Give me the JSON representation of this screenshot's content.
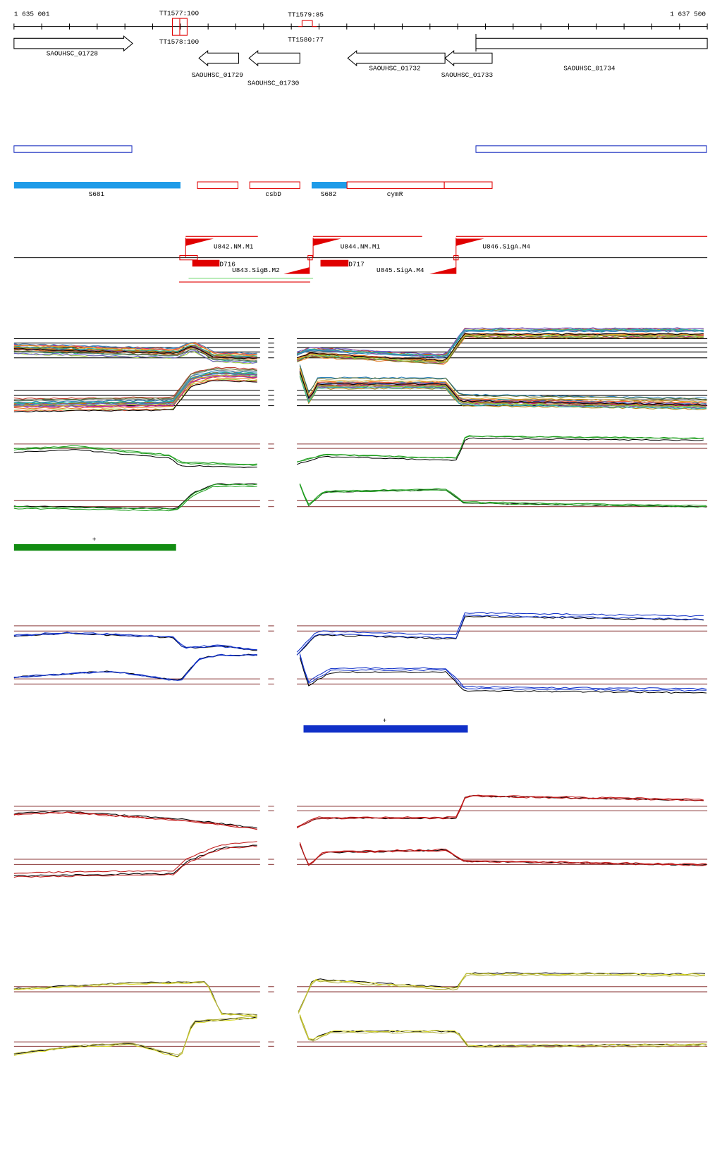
{
  "ruler": {
    "start": "1 635 001",
    "end": "1 637 500"
  },
  "terminators": [
    "TT1577:100",
    "TT1578:100",
    "TT1579:85",
    "TT1580:77"
  ],
  "genes": [
    "SAOUHSC_01728",
    "SAOUHSC_01729",
    "SAOUHSC_01730",
    "SAOUHSC_01732",
    "SAOUHSC_01733",
    "SAOUHSC_01734"
  ],
  "segments": [
    "S681",
    "csbD",
    "S682",
    "cymR"
  ],
  "promoters": [
    "U842.NM.M1",
    "U843.SigB.M2",
    "U844.NM.M1",
    "U845.SigA.M4",
    "U846.SigA.M4"
  ],
  "downs": [
    "D716",
    "D717"
  ],
  "markers": [
    "+",
    "+"
  ]
}
